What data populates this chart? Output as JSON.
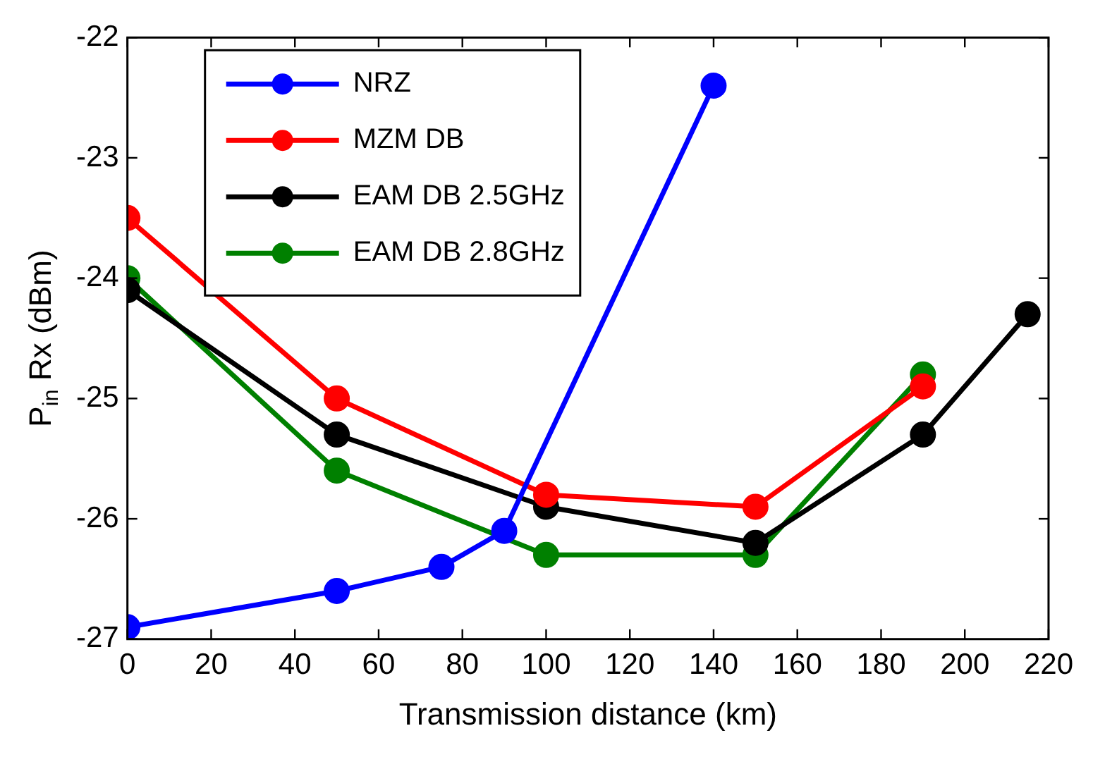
{
  "chart_data": {
    "type": "line",
    "xlabel": "Transmission distance (km)",
    "ylabel": "P$_{in}$ Rx (dBm)",
    "xlim": [
      0,
      220
    ],
    "xticks": [
      0,
      20,
      40,
      60,
      80,
      100,
      120,
      140,
      160,
      180,
      200,
      220
    ],
    "ylim": [
      -27,
      -22
    ],
    "yticks": [
      -27,
      -26,
      -25,
      -24,
      -23,
      -22
    ],
    "grid": false,
    "legend": "top left",
    "marker": "circle",
    "line_style": "solid",
    "series": [
      {
        "name": "NRZ",
        "color": "#0000ff",
        "x": [
          0,
          50,
          75,
          90,
          140
        ],
        "values": [
          -26.9,
          -26.6,
          -26.4,
          -26.1,
          -22.4
        ]
      },
      {
        "name": "MZM DB",
        "color": "#ff0000",
        "x": [
          0,
          50,
          100,
          150,
          190
        ],
        "values": [
          -23.5,
          -25.0,
          -25.8,
          -25.9,
          -24.9
        ]
      },
      {
        "name": "EAM DB 2.5GHz",
        "color": "#000000",
        "x": [
          0,
          50,
          100,
          150,
          190,
          215
        ],
        "values": [
          -24.1,
          -25.3,
          -25.9,
          -26.2,
          -25.3,
          -24.3
        ]
      },
      {
        "name": "EAM DB 2.8GHz",
        "color": "#008000",
        "x": [
          0,
          50,
          100,
          150,
          190
        ],
        "values": [
          -24.0,
          -25.6,
          -26.3,
          -26.3,
          -24.8
        ]
      }
    ]
  }
}
